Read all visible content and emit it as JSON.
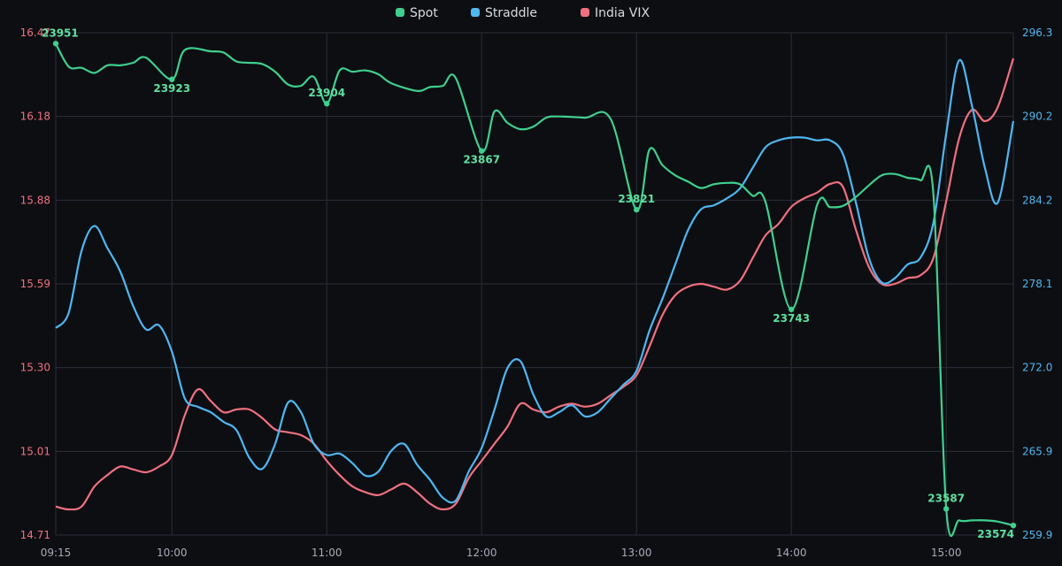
{
  "chart_data": {
    "type": "line",
    "x_labels": [
      "09:15",
      "10:00",
      "11:00",
      "12:00",
      "13:00",
      "14:00",
      "15:00"
    ],
    "x_range": [
      "09:15",
      "15:26"
    ],
    "y_left": {
      "ticks": [
        "14.71",
        "15.01",
        "15.30",
        "15.59",
        "15.88",
        "16.18",
        "16.47"
      ],
      "range": [
        14.71,
        16.47
      ],
      "color": "#f07080"
    },
    "y_right": {
      "ticks": [
        "259.9",
        "265.9",
        "272.0",
        "278.1",
        "284.2",
        "290.2",
        "296.3"
      ],
      "range": [
        259.9,
        296.3
      ],
      "color": "#4fb6f0"
    },
    "grid": true,
    "legend_position": "top-center",
    "series": [
      {
        "name": "Spot",
        "color": "#3fcf8e",
        "axis": "spot-hidden",
        "range": [
          23566.5,
          23959.5
        ],
        "points": [
          [
            "09:15",
            23951
          ],
          [
            "09:20",
            23933
          ],
          [
            "09:25",
            23932
          ],
          [
            "09:30",
            23928
          ],
          [
            "09:35",
            23934
          ],
          [
            "09:40",
            23934
          ],
          [
            "09:45",
            23936
          ],
          [
            "09:50",
            23940
          ],
          [
            "10:00",
            23923
          ],
          [
            "10:05",
            23946
          ],
          [
            "10:15",
            23945
          ],
          [
            "10:20",
            23944
          ],
          [
            "10:25",
            23937
          ],
          [
            "10:30",
            23936
          ],
          [
            "10:35",
            23935
          ],
          [
            "10:40",
            23929
          ],
          [
            "10:45",
            23919
          ],
          [
            "10:50",
            23918
          ],
          [
            "10:55",
            23925
          ],
          [
            "11:00",
            23904
          ],
          [
            "11:05",
            23930
          ],
          [
            "11:10",
            23929
          ],
          [
            "11:15",
            23930
          ],
          [
            "11:20",
            23927
          ],
          [
            "11:25",
            23920
          ],
          [
            "11:35",
            23914
          ],
          [
            "11:40",
            23917
          ],
          [
            "11:45",
            23918
          ],
          [
            "11:50",
            23924
          ],
          [
            "12:00",
            23867
          ],
          [
            "12:05",
            23898
          ],
          [
            "12:10",
            23889
          ],
          [
            "12:15",
            23884
          ],
          [
            "12:20",
            23886
          ],
          [
            "12:25",
            23893
          ],
          [
            "12:30",
            23894
          ],
          [
            "12:40",
            23893
          ],
          [
            "12:50",
            23892
          ],
          [
            "13:00",
            23821
          ],
          [
            "13:05",
            23868
          ],
          [
            "13:10",
            23856
          ],
          [
            "13:15",
            23848
          ],
          [
            "13:20",
            23843
          ],
          [
            "13:25",
            23838
          ],
          [
            "13:30",
            23841
          ],
          [
            "13:35",
            23842
          ],
          [
            "13:40",
            23841
          ],
          [
            "13:45",
            23832
          ],
          [
            "13:50",
            23827
          ],
          [
            "14:00",
            23743
          ],
          [
            "14:10",
            23825
          ],
          [
            "14:15",
            23823
          ],
          [
            "14:20",
            23824
          ],
          [
            "14:25",
            23831
          ],
          [
            "14:30",
            23840
          ],
          [
            "14:35",
            23848
          ],
          [
            "14:40",
            23849
          ],
          [
            "14:45",
            23846
          ],
          [
            "14:50",
            23844
          ],
          [
            "14:55",
            23834
          ],
          [
            "15:00",
            23587
          ],
          [
            "15:05",
            23578
          ],
          [
            "15:10",
            23578
          ],
          [
            "15:15",
            23578
          ],
          [
            "15:20",
            23577
          ],
          [
            "15:26",
            23574
          ]
        ],
        "labels": [
          {
            "time": "09:15",
            "text": "23951"
          },
          {
            "time": "10:00",
            "text": "23923"
          },
          {
            "time": "11:00",
            "text": "23904"
          },
          {
            "time": "12:00",
            "text": "23867"
          },
          {
            "time": "13:00",
            "text": "23821"
          },
          {
            "time": "14:00",
            "text": "23743"
          },
          {
            "time": "15:00",
            "text": "23587"
          },
          {
            "time": "15:26",
            "text": "23574"
          }
        ]
      },
      {
        "name": "Straddle",
        "color": "#4fb6f0",
        "axis": "right",
        "points": [
          [
            "09:15",
            274.9
          ],
          [
            "09:20",
            276.0
          ],
          [
            "09:25",
            280.5
          ],
          [
            "09:30",
            282.3
          ],
          [
            "09:35",
            280.7
          ],
          [
            "09:40",
            279.0
          ],
          [
            "09:45",
            276.5
          ],
          [
            "09:50",
            274.8
          ],
          [
            "09:55",
            275.1
          ],
          [
            "10:00",
            273.2
          ],
          [
            "10:05",
            269.8
          ],
          [
            "10:10",
            269.2
          ],
          [
            "10:15",
            268.8
          ],
          [
            "10:20",
            268.1
          ],
          [
            "10:25",
            267.5
          ],
          [
            "10:30",
            265.5
          ],
          [
            "10:35",
            264.7
          ],
          [
            "10:40",
            266.5
          ],
          [
            "10:45",
            269.5
          ],
          [
            "10:50",
            268.8
          ],
          [
            "10:55",
            266.5
          ],
          [
            "11:00",
            265.7
          ],
          [
            "11:05",
            265.8
          ],
          [
            "11:10",
            265.1
          ],
          [
            "11:15",
            264.2
          ],
          [
            "11:20",
            264.5
          ],
          [
            "11:25",
            266.0
          ],
          [
            "11:30",
            266.5
          ],
          [
            "11:35",
            265.0
          ],
          [
            "11:40",
            263.9
          ],
          [
            "11:45",
            262.6
          ],
          [
            "11:50",
            262.4
          ],
          [
            "11:55",
            264.5
          ],
          [
            "12:00",
            266.2
          ],
          [
            "12:05",
            269.0
          ],
          [
            "12:10",
            272.0
          ],
          [
            "12:15",
            272.5
          ],
          [
            "12:20",
            270.1
          ],
          [
            "12:25",
            268.5
          ],
          [
            "12:30",
            268.8
          ],
          [
            "12:35",
            269.3
          ],
          [
            "12:40",
            268.5
          ],
          [
            "12:45",
            268.8
          ],
          [
            "12:50",
            269.8
          ],
          [
            "12:55",
            270.8
          ],
          [
            "13:00",
            271.8
          ],
          [
            "13:05",
            274.7
          ],
          [
            "13:10",
            277.0
          ],
          [
            "13:15",
            279.5
          ],
          [
            "13:20",
            282.0
          ],
          [
            "13:25",
            283.5
          ],
          [
            "13:30",
            283.8
          ],
          [
            "13:35",
            284.3
          ],
          [
            "13:40",
            285.0
          ],
          [
            "13:45",
            286.5
          ],
          [
            "13:50",
            288.0
          ],
          [
            "13:55",
            288.5
          ],
          [
            "14:00",
            288.7
          ],
          [
            "14:05",
            288.7
          ],
          [
            "14:10",
            288.5
          ],
          [
            "14:15",
            288.5
          ],
          [
            "14:20",
            287.5
          ],
          [
            "14:25",
            284.0
          ],
          [
            "14:30",
            280.0
          ],
          [
            "14:35",
            278.2
          ],
          [
            "14:40",
            278.5
          ],
          [
            "14:45",
            279.5
          ],
          [
            "14:50",
            280.0
          ],
          [
            "14:55",
            282.5
          ],
          [
            "15:00",
            289.0
          ],
          [
            "15:05",
            294.3
          ],
          [
            "15:10",
            291.0
          ],
          [
            "15:15",
            286.5
          ],
          [
            "15:20",
            284.0
          ],
          [
            "15:26",
            289.9
          ]
        ]
      },
      {
        "name": "India VIX",
        "color": "#f07080",
        "axis": "left",
        "points": [
          [
            "09:15",
            14.81
          ],
          [
            "09:20",
            14.8
          ],
          [
            "09:25",
            14.81
          ],
          [
            "09:30",
            14.88
          ],
          [
            "09:35",
            14.92
          ],
          [
            "09:40",
            14.95
          ],
          [
            "09:45",
            14.94
          ],
          [
            "09:50",
            14.93
          ],
          [
            "09:55",
            14.95
          ],
          [
            "10:00",
            14.99
          ],
          [
            "10:05",
            15.13
          ],
          [
            "10:10",
            15.22
          ],
          [
            "10:15",
            15.18
          ],
          [
            "10:20",
            15.14
          ],
          [
            "10:25",
            15.15
          ],
          [
            "10:30",
            15.15
          ],
          [
            "10:35",
            15.12
          ],
          [
            "10:40",
            15.08
          ],
          [
            "10:45",
            15.07
          ],
          [
            "10:50",
            15.06
          ],
          [
            "10:55",
            15.03
          ],
          [
            "11:00",
            14.97
          ],
          [
            "11:05",
            14.92
          ],
          [
            "11:10",
            14.88
          ],
          [
            "11:15",
            14.86
          ],
          [
            "11:20",
            14.85
          ],
          [
            "11:25",
            14.87
          ],
          [
            "11:30",
            14.89
          ],
          [
            "11:35",
            14.86
          ],
          [
            "11:40",
            14.82
          ],
          [
            "11:45",
            14.8
          ],
          [
            "11:50",
            14.82
          ],
          [
            "11:55",
            14.91
          ],
          [
            "12:00",
            14.97
          ],
          [
            "12:05",
            15.03
          ],
          [
            "12:10",
            15.09
          ],
          [
            "12:15",
            15.17
          ],
          [
            "12:20",
            15.15
          ],
          [
            "12:25",
            15.14
          ],
          [
            "12:30",
            15.16
          ],
          [
            "12:35",
            15.17
          ],
          [
            "12:40",
            15.16
          ],
          [
            "12:45",
            15.17
          ],
          [
            "12:50",
            15.2
          ],
          [
            "12:55",
            15.23
          ],
          [
            "13:00",
            15.27
          ],
          [
            "13:05",
            15.37
          ],
          [
            "13:10",
            15.48
          ],
          [
            "13:15",
            15.55
          ],
          [
            "13:20",
            15.58
          ],
          [
            "13:25",
            15.59
          ],
          [
            "13:30",
            15.58
          ],
          [
            "13:35",
            15.57
          ],
          [
            "13:40",
            15.6
          ],
          [
            "13:45",
            15.68
          ],
          [
            "13:50",
            15.76
          ],
          [
            "13:55",
            15.8
          ],
          [
            "14:00",
            15.86
          ],
          [
            "14:05",
            15.89
          ],
          [
            "14:10",
            15.91
          ],
          [
            "14:15",
            15.94
          ],
          [
            "14:20",
            15.93
          ],
          [
            "14:25",
            15.78
          ],
          [
            "14:30",
            15.65
          ],
          [
            "14:35",
            15.59
          ],
          [
            "14:40",
            15.59
          ],
          [
            "14:45",
            15.61
          ],
          [
            "14:50",
            15.62
          ],
          [
            "14:55",
            15.68
          ],
          [
            "15:00",
            15.88
          ],
          [
            "15:05",
            16.1
          ],
          [
            "15:10",
            16.2
          ],
          [
            "15:15",
            16.16
          ],
          [
            "15:20",
            16.21
          ],
          [
            "15:26",
            16.38
          ]
        ]
      }
    ]
  }
}
